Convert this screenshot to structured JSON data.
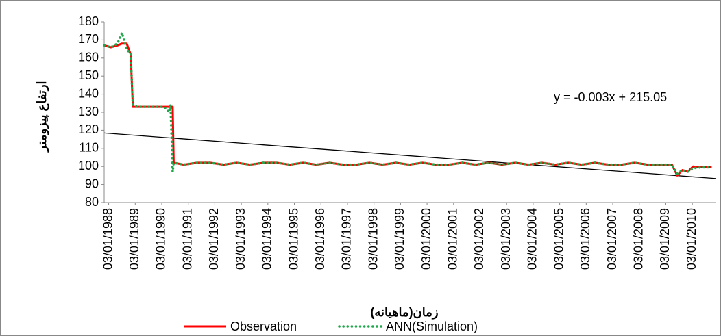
{
  "chart_data": {
    "type": "line",
    "y_label": "ارتفاع پیزومتر",
    "x_label": "زمان(ماهیانه)",
    "x": [
      1988.0,
      1988.25,
      1988.5,
      1988.67,
      1988.85,
      1989.0,
      1989.08,
      1989.25,
      1989.5,
      1989.75,
      1990.0,
      1990.25,
      1990.45,
      1990.5,
      1990.58,
      1990.62,
      1991.0,
      1991.5,
      1992.0,
      1992.5,
      1993.0,
      1993.5,
      1994.0,
      1994.5,
      1995.0,
      1995.5,
      1996.0,
      1996.5,
      1997.0,
      1997.5,
      1998.0,
      1998.5,
      1999.0,
      1999.5,
      2000.0,
      2000.5,
      2001.0,
      2001.5,
      2002.0,
      2002.5,
      2003.0,
      2003.5,
      2004.0,
      2004.5,
      2005.0,
      2005.5,
      2006.0,
      2006.5,
      2007.0,
      2007.5,
      2008.0,
      2008.5,
      2009.0,
      2009.4,
      2009.6,
      2009.8,
      2010.0,
      2010.2,
      2010.5,
      2010.9
    ],
    "series": [
      {
        "name": "Observation",
        "color": "#ff0000",
        "style": "solid",
        "values": [
          167,
          166,
          167,
          168,
          168,
          162,
          133,
          133,
          133,
          133,
          133,
          133,
          133,
          133,
          133,
          102,
          101,
          102,
          102,
          101,
          102,
          101,
          102,
          102,
          101,
          102,
          101,
          102,
          101,
          101,
          102,
          101,
          102,
          101,
          102,
          101,
          101,
          102,
          101,
          102,
          101,
          102,
          101,
          102,
          101,
          102,
          101,
          102,
          101,
          101,
          102,
          101,
          101,
          101,
          95,
          98,
          97,
          100,
          99.5,
          99.5
        ]
      },
      {
        "name": "ANN(Simulation)",
        "color": "#1fa84a",
        "style": "dotted",
        "values": [
          167,
          166,
          168,
          174,
          165,
          162,
          134,
          133,
          133,
          133,
          133,
          133,
          130,
          134,
          97,
          102,
          101,
          102,
          102,
          101,
          102,
          101,
          102,
          102,
          101,
          102,
          101,
          102,
          101,
          101,
          102,
          101,
          102,
          101,
          102,
          101,
          101,
          102,
          101,
          102,
          101,
          102,
          101,
          102,
          101,
          102,
          101,
          102,
          101,
          101,
          102,
          101,
          101,
          101,
          96,
          98,
          97,
          99,
          99.5,
          99.5
        ]
      }
    ],
    "trendline": {
      "label": "y = -0.003x + 215.05",
      "values": [
        118.5,
        93.3
      ],
      "color": "#000000"
    },
    "xlim": [
      1988.0,
      2011.07
    ],
    "xticks": [
      {
        "value": 1988.17,
        "label": "03/01/1988"
      },
      {
        "value": 1989.17,
        "label": "03/01/1989"
      },
      {
        "value": 1990.17,
        "label": "03/01/1990"
      },
      {
        "value": 1991.17,
        "label": "03/01/1991"
      },
      {
        "value": 1992.17,
        "label": "03/01/1992"
      },
      {
        "value": 1993.17,
        "label": "03/01/1993"
      },
      {
        "value": 1994.17,
        "label": "03/01/1994"
      },
      {
        "value": 1995.17,
        "label": "03/01/1995"
      },
      {
        "value": 1996.17,
        "label": "03/01/1996"
      },
      {
        "value": 1997.17,
        "label": "03/01/1997"
      },
      {
        "value": 1998.17,
        "label": "03/01/1998"
      },
      {
        "value": 1999.17,
        "label": "03/01/1999"
      },
      {
        "value": 2000.17,
        "label": "03/01/2000"
      },
      {
        "value": 2001.17,
        "label": "03/01/2001"
      },
      {
        "value": 2002.17,
        "label": "03/01/2002"
      },
      {
        "value": 2003.17,
        "label": "03/01/2003"
      },
      {
        "value": 2004.17,
        "label": "03/01/2004"
      },
      {
        "value": 2005.17,
        "label": "03/01/2005"
      },
      {
        "value": 2006.17,
        "label": "03/01/2006"
      },
      {
        "value": 2007.17,
        "label": "03/01/2007"
      },
      {
        "value": 2008.17,
        "label": "03/01/2008"
      },
      {
        "value": 2009.17,
        "label": "03/01/2009"
      },
      {
        "value": 2010.17,
        "label": "03/01/2010"
      }
    ],
    "ylim": [
      80,
      180
    ],
    "yticks": [
      80,
      90,
      100,
      110,
      120,
      130,
      140,
      150,
      160,
      170,
      180
    ],
    "grid": false
  }
}
